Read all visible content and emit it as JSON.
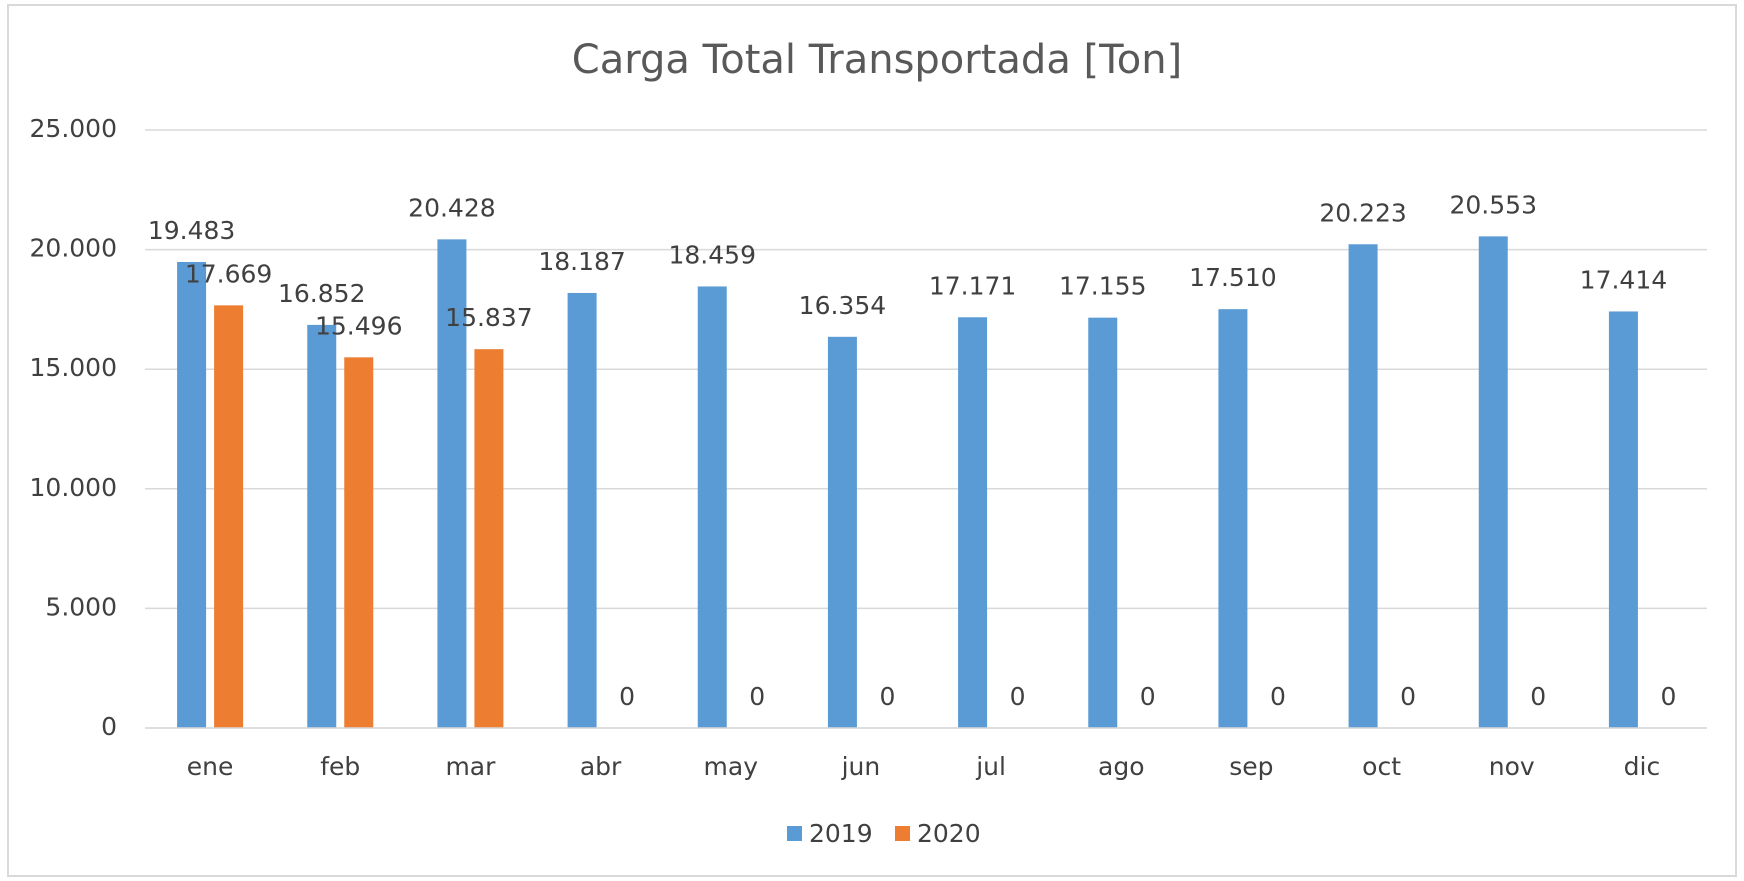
{
  "chart_data": {
    "type": "bar",
    "title": "Carga Total Transportada [Ton]",
    "categories": [
      "ene",
      "feb",
      "mar",
      "abr",
      "may",
      "jun",
      "jul",
      "ago",
      "sep",
      "oct",
      "nov",
      "dic"
    ],
    "series": [
      {
        "name": "2019",
        "color": "#5b9bd5",
        "values": [
          19483,
          16852,
          20428,
          18187,
          18459,
          16354,
          17171,
          17155,
          17510,
          20223,
          20553,
          17414
        ],
        "value_labels": [
          "19.483",
          "16.852",
          "20.428",
          "18.187",
          "18.459",
          "16.354",
          "17.171",
          "17.155",
          "17.510",
          "20.223",
          "20.553",
          "17.414"
        ]
      },
      {
        "name": "2020",
        "color": "#ed7d31",
        "values": [
          17669,
          15496,
          15837,
          0,
          0,
          0,
          0,
          0,
          0,
          0,
          0,
          0
        ],
        "value_labels": [
          "17.669",
          "15.496",
          "15.837",
          "0",
          "0",
          "0",
          "0",
          "0",
          "0",
          "0",
          "0",
          "0"
        ]
      }
    ],
    "ylim": [
      0,
      25000
    ],
    "yticks": [
      0,
      {
        "value": 5000,
        "label": "5.000"
      },
      {
        "value": 10000,
        "label": "10.000"
      },
      {
        "value": 15000,
        "label": "15.000"
      },
      {
        "value": 20000,
        "label": "20.000"
      },
      {
        "value": 25000,
        "label": "25.000"
      }
    ],
    "grid": true,
    "legend": "bottom"
  }
}
